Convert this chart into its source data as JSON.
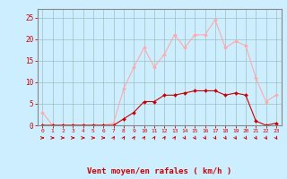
{
  "x": [
    0,
    1,
    2,
    3,
    4,
    5,
    6,
    7,
    8,
    9,
    10,
    11,
    12,
    13,
    14,
    15,
    16,
    17,
    18,
    19,
    20,
    21,
    22,
    23
  ],
  "rafales": [
    3,
    0,
    0,
    0,
    0,
    0,
    0,
    0.5,
    8.5,
    13.5,
    18,
    13.5,
    16.5,
    21,
    18,
    21,
    21,
    24.5,
    18,
    19.5,
    18.5,
    11,
    5.5,
    7
  ],
  "moyen": [
    0,
    0,
    0,
    0,
    0,
    0,
    0,
    0,
    1.5,
    3,
    5.5,
    5.5,
    7,
    7,
    7.5,
    8,
    8,
    8,
    7,
    7.5,
    7,
    1,
    0,
    0.5
  ],
  "bg_color": "#cceeff",
  "grid_color": "#9fbfbf",
  "line_color_rafales": "#ffaaaa",
  "line_color_moyen": "#cc0000",
  "xlabel": "Vent moyen/en rafales ( km/h )",
  "xlabel_color": "#cc0000",
  "ylabel_ticks": [
    0,
    5,
    10,
    15,
    20,
    25
  ],
  "xlim": [
    -0.5,
    23.5
  ],
  "ylim": [
    0,
    27
  ],
  "tick_color": "#cc0000",
  "axis_color": "#888888",
  "arrow_color": "#cc0000",
  "arrow_angles": [
    0,
    0,
    0,
    0,
    0,
    0,
    0,
    45,
    45,
    45,
    45,
    45,
    45,
    45,
    315,
    315,
    315,
    315,
    315,
    315,
    315,
    315,
    315,
    315
  ]
}
